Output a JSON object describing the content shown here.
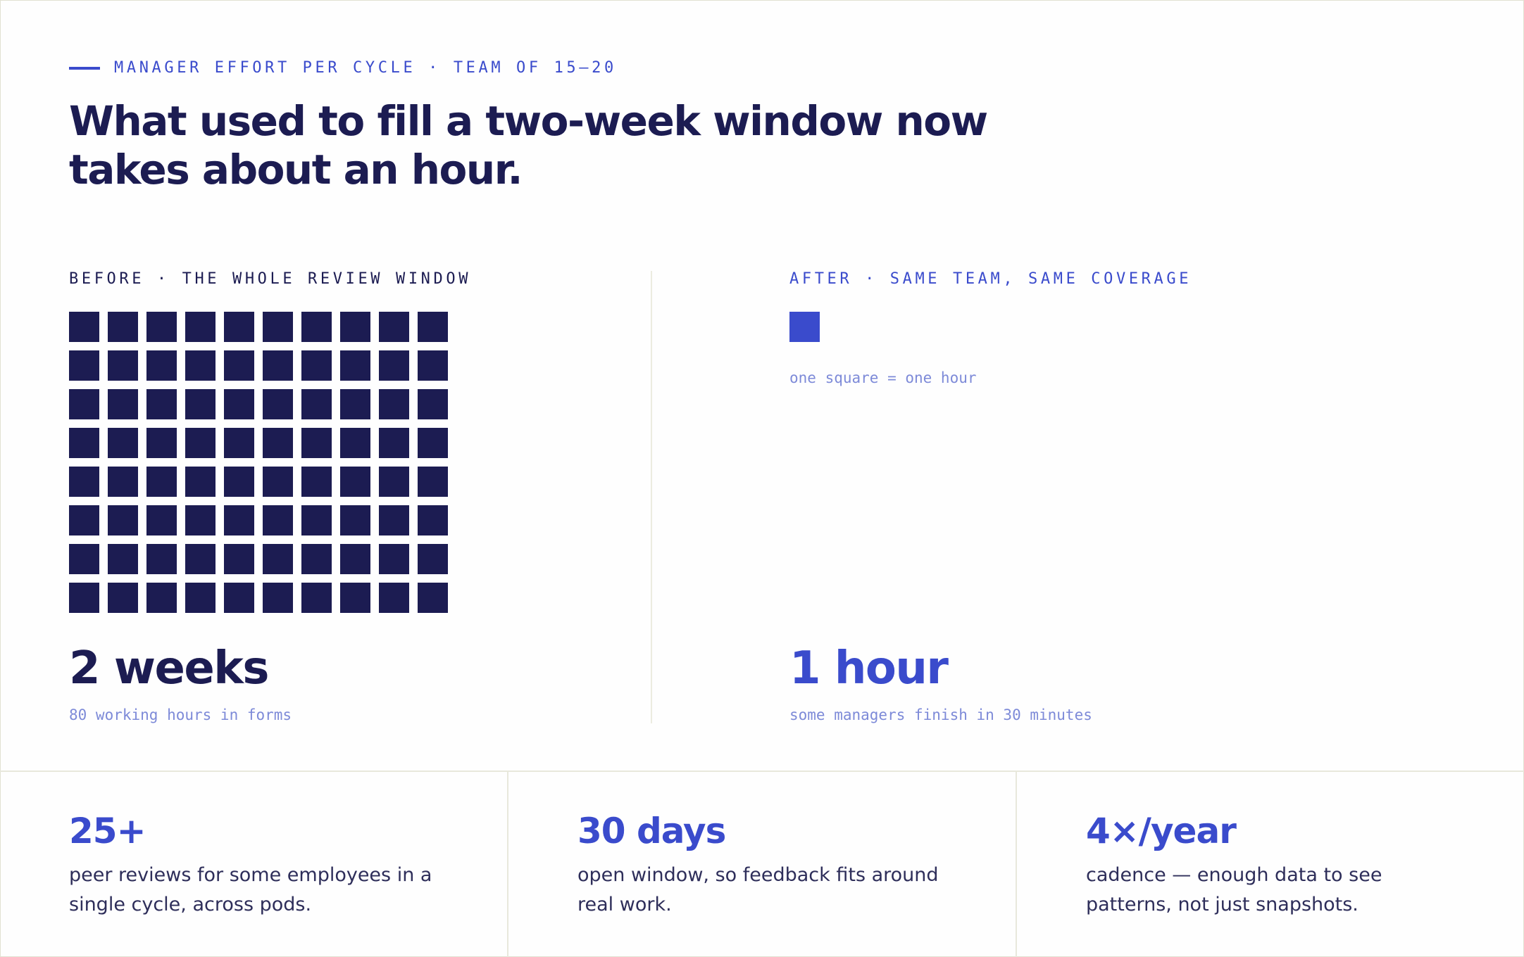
{
  "eyebrow": "MANAGER EFFORT PER CYCLE · TEAM OF 15–20",
  "headline": "What used to fill a two-week window now takes about an hour.",
  "before": {
    "label": "BEFORE · THE WHOLE REVIEW WINDOW",
    "squares": 80,
    "value": "2 weeks",
    "caption": "80 working hours in forms"
  },
  "after": {
    "label": "AFTER · SAME TEAM, SAME COVERAGE",
    "squares": 1,
    "legend": "one square = one hour",
    "value": "1 hour",
    "caption": "some managers finish in 30 minutes"
  },
  "stats": [
    {
      "value": "25+",
      "description": "peer reviews for some employees in a single cycle, across pods."
    },
    {
      "value": "30 days",
      "description": "open window, so feedback fits around real work."
    },
    {
      "value": "4×/year",
      "description": "cadence — enough data to see patterns, not just snapshots."
    }
  ],
  "colors": {
    "navy": "#1c1c52",
    "accent": "#3a4bcc",
    "muted": "#7d8ad8"
  }
}
